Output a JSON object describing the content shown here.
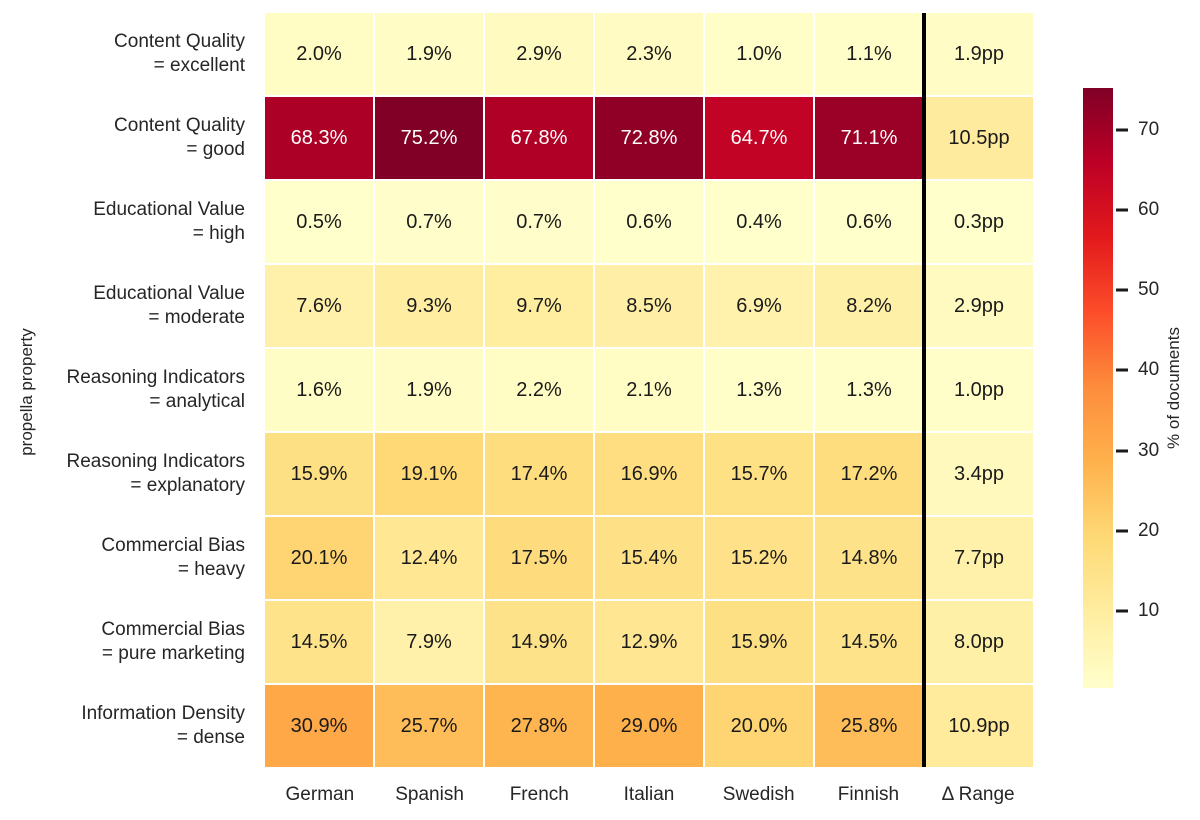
{
  "chart_data": {
    "type": "heatmap",
    "ylabel": "propella property",
    "colorbar_label": "% of documents",
    "columns": [
      "German",
      "Spanish",
      "French",
      "Italian",
      "Swedish",
      "Finnish",
      "Δ Range"
    ],
    "rows": [
      {
        "label_line1": "Content Quality",
        "label_line2": "= excellent",
        "values": [
          2.0,
          1.9,
          2.9,
          2.3,
          1.0,
          1.1,
          1.9
        ],
        "display": [
          "2.0%",
          "1.9%",
          "2.9%",
          "2.3%",
          "1.0%",
          "1.1%",
          "1.9pp"
        ]
      },
      {
        "label_line1": "Content Quality",
        "label_line2": "= good",
        "values": [
          68.3,
          75.2,
          67.8,
          72.8,
          64.7,
          71.1,
          10.5
        ],
        "display": [
          "68.3%",
          "75.2%",
          "67.8%",
          "72.8%",
          "64.7%",
          "71.1%",
          "10.5pp"
        ]
      },
      {
        "label_line1": "Educational Value",
        "label_line2": "= high",
        "values": [
          0.5,
          0.7,
          0.7,
          0.6,
          0.4,
          0.6,
          0.3
        ],
        "display": [
          "0.5%",
          "0.7%",
          "0.7%",
          "0.6%",
          "0.4%",
          "0.6%",
          "0.3pp"
        ]
      },
      {
        "label_line1": "Educational Value",
        "label_line2": "= moderate",
        "values": [
          7.6,
          9.3,
          9.7,
          8.5,
          6.9,
          8.2,
          2.9
        ],
        "display": [
          "7.6%",
          "9.3%",
          "9.7%",
          "8.5%",
          "6.9%",
          "8.2%",
          "2.9pp"
        ]
      },
      {
        "label_line1": "Reasoning Indicators",
        "label_line2": "= analytical",
        "values": [
          1.6,
          1.9,
          2.2,
          2.1,
          1.3,
          1.3,
          1.0
        ],
        "display": [
          "1.6%",
          "1.9%",
          "2.2%",
          "2.1%",
          "1.3%",
          "1.3%",
          "1.0pp"
        ]
      },
      {
        "label_line1": "Reasoning Indicators",
        "label_line2": "= explanatory",
        "values": [
          15.9,
          19.1,
          17.4,
          16.9,
          15.7,
          17.2,
          3.4
        ],
        "display": [
          "15.9%",
          "19.1%",
          "17.4%",
          "16.9%",
          "15.7%",
          "17.2%",
          "3.4pp"
        ]
      },
      {
        "label_line1": "Commercial Bias",
        "label_line2": "= heavy",
        "values": [
          20.1,
          12.4,
          17.5,
          15.4,
          15.2,
          14.8,
          7.7
        ],
        "display": [
          "20.1%",
          "12.4%",
          "17.5%",
          "15.4%",
          "15.2%",
          "14.8%",
          "7.7pp"
        ]
      },
      {
        "label_line1": "Commercial Bias",
        "label_line2": "= pure marketing",
        "values": [
          14.5,
          7.9,
          14.9,
          12.9,
          15.9,
          14.5,
          8.0
        ],
        "display": [
          "14.5%",
          "7.9%",
          "14.9%",
          "12.9%",
          "15.9%",
          "14.5%",
          "8.0pp"
        ]
      },
      {
        "label_line1": "Information Density",
        "label_line2": "= dense",
        "values": [
          30.9,
          25.7,
          27.8,
          29.0,
          20.0,
          25.8,
          10.9
        ],
        "display": [
          "30.9%",
          "25.7%",
          "27.8%",
          "29.0%",
          "20.0%",
          "25.8%",
          "10.9pp"
        ]
      }
    ],
    "color_scale": {
      "name": "YlOrRd",
      "vmin": 0.4,
      "vmax": 75.2,
      "stops": [
        "#ffffcc",
        "#ffeda0",
        "#fed976",
        "#feb24c",
        "#fd8d3c",
        "#fc4e2a",
        "#e31a1c",
        "#bd0026",
        "#800026"
      ]
    },
    "colorbar_ticks": [
      10,
      20,
      30,
      40,
      50,
      60,
      70
    ],
    "separator_after_column": 6,
    "annotation_text_colors": {
      "light_cell": "#1a1a1a",
      "dark_cell": "#ffffff"
    },
    "gridline_color": "#ffffff",
    "separator_color": "#000000",
    "legend_position": "right"
  }
}
